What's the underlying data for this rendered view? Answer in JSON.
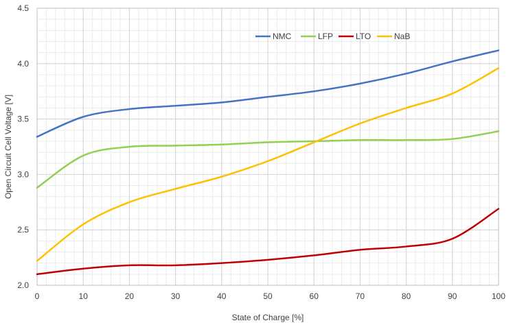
{
  "chart_data": {
    "type": "line",
    "title": "",
    "xlabel": "State of Charge [%]",
    "ylabel": "Open Circuit Cell Voltage [V]",
    "xlim": [
      0,
      100
    ],
    "ylim": [
      2.0,
      4.5
    ],
    "xticks": [
      0,
      10,
      20,
      30,
      40,
      50,
      60,
      70,
      80,
      90,
      100
    ],
    "yticks": [
      2.0,
      2.5,
      3.0,
      3.5,
      4.0,
      4.5
    ],
    "ytick_labels": [
      "2.0",
      "2.5",
      "3.0",
      "3.5",
      "4.0",
      "4.5"
    ],
    "grid": true,
    "legend_position": "top-right",
    "x": [
      0,
      10,
      20,
      30,
      40,
      50,
      60,
      70,
      80,
      90,
      100
    ],
    "series": [
      {
        "name": "NMC",
        "color": "#4472C4",
        "values": [
          3.34,
          3.52,
          3.59,
          3.62,
          3.65,
          3.7,
          3.75,
          3.82,
          3.91,
          4.02,
          4.12
        ]
      },
      {
        "name": "LFP",
        "color": "#92D050",
        "values": [
          2.88,
          3.17,
          3.25,
          3.26,
          3.27,
          3.29,
          3.3,
          3.31,
          3.31,
          3.32,
          3.39
        ]
      },
      {
        "name": "LTO",
        "color": "#C00000",
        "values": [
          2.1,
          2.15,
          2.18,
          2.18,
          2.2,
          2.23,
          2.27,
          2.32,
          2.35,
          2.42,
          2.69
        ]
      },
      {
        "name": "NaB",
        "color": "#FFC000",
        "values": [
          2.22,
          2.55,
          2.75,
          2.87,
          2.98,
          3.12,
          3.29,
          3.46,
          3.6,
          3.73,
          3.96
        ]
      }
    ]
  }
}
